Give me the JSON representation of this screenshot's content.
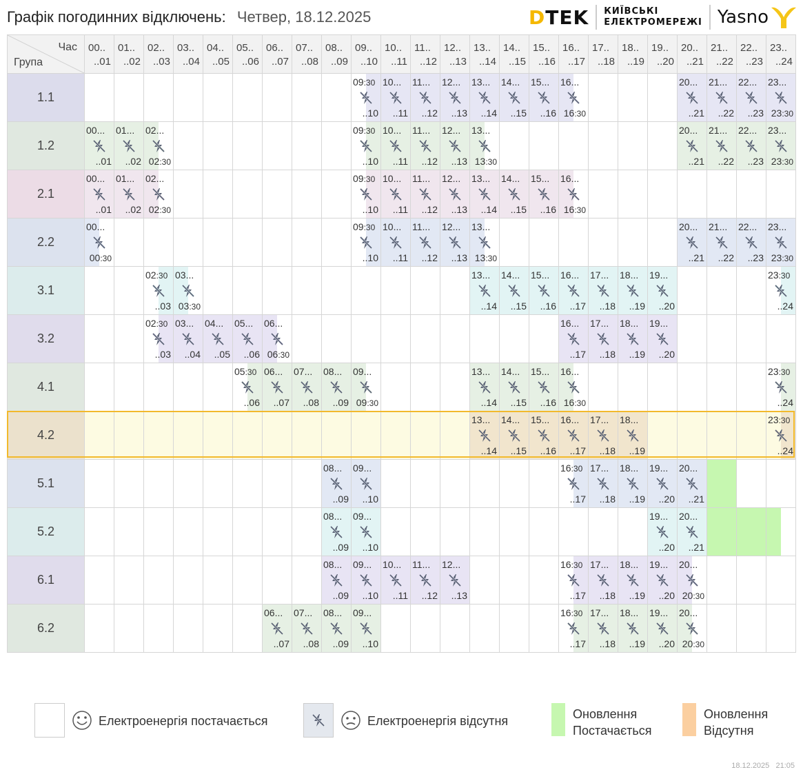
{
  "header": {
    "title": "Графік погодинних відключень:",
    "date": "Четвер, 18.12.2025",
    "brand_dtek": "DTEK",
    "brand_kyiv_line1": "КИЇВСЬКІ",
    "brand_kyiv_line2": "ЕЛЕКТРОМЕРЕЖІ",
    "brand_yasno": "Yasno"
  },
  "table": {
    "corner_hour_label": "Час",
    "corner_group_label": "Група",
    "hours": [
      [
        "00..",
        "..01"
      ],
      [
        "01..",
        "..02"
      ],
      [
        "02..",
        "..03"
      ],
      [
        "03..",
        "..04"
      ],
      [
        "04..",
        "..05"
      ],
      [
        "05..",
        "..06"
      ],
      [
        "06..",
        "..07"
      ],
      [
        "07..",
        "..08"
      ],
      [
        "08..",
        "..09"
      ],
      [
        "09..",
        "..10"
      ],
      [
        "10..",
        "..11"
      ],
      [
        "11..",
        "..12"
      ],
      [
        "12..",
        "..13"
      ],
      [
        "13..",
        "..14"
      ],
      [
        "14..",
        "..15"
      ],
      [
        "15..",
        "..16"
      ],
      [
        "16..",
        "..17"
      ],
      [
        "17..",
        "..18"
      ],
      [
        "18..",
        "..19"
      ],
      [
        "19..",
        "..20"
      ],
      [
        "20..",
        "..21"
      ],
      [
        "21..",
        "..22"
      ],
      [
        "22..",
        "..23"
      ],
      [
        "23..",
        "..24"
      ]
    ],
    "groups": [
      {
        "name": "1.1",
        "label_bg": "#dcdcec",
        "bg": "#e6e6f4",
        "off": {
          "9": "right",
          "10": "full",
          "11": "full",
          "12": "full",
          "13": "full",
          "14": "full",
          "15": "full",
          "16": "left",
          "20": "full",
          "21": "full",
          "22": "full",
          "23": "full"
        },
        "texts": {
          "9": [
            "09:30",
            "..10"
          ],
          "10": [
            "10...",
            "..11"
          ],
          "11": [
            "11...",
            "..12"
          ],
          "12": [
            "12...",
            "..13"
          ],
          "13": [
            "13...",
            "..14"
          ],
          "14": [
            "14...",
            "..15"
          ],
          "15": [
            "15...",
            "..16"
          ],
          "16": [
            "16...",
            "16:30"
          ],
          "20": [
            "20...",
            "..21"
          ],
          "21": [
            "21...",
            "..22"
          ],
          "22": [
            "22...",
            "..23"
          ],
          "23": [
            "23...",
            "23:30"
          ]
        }
      },
      {
        "name": "1.2",
        "label_bg": "#e0e8e0",
        "bg": "#e6f0e4",
        "off": {
          "0": "full",
          "1": "full",
          "2": "left",
          "9": "right",
          "10": "full",
          "11": "full",
          "12": "full",
          "13": "left",
          "20": "full",
          "21": "full",
          "22": "full",
          "23": "full"
        },
        "texts": {
          "0": [
            "00...",
            "..01"
          ],
          "1": [
            "01...",
            "..02"
          ],
          "2": [
            "02...",
            "02:30"
          ],
          "9": [
            "09:30",
            "..10"
          ],
          "10": [
            "10...",
            "..11"
          ],
          "11": [
            "11...",
            "..12"
          ],
          "12": [
            "12...",
            "..13"
          ],
          "13": [
            "13...",
            "13:30"
          ],
          "20": [
            "20...",
            "..21"
          ],
          "21": [
            "21...",
            "..22"
          ],
          "22": [
            "22...",
            "..23"
          ],
          "23": [
            "23...",
            "23:30"
          ]
        },
        "update": {
          "23": "right"
        }
      },
      {
        "name": "2.1",
        "label_bg": "#ecdce6",
        "bg": "#f0e6ee",
        "off": {
          "0": "full",
          "1": "full",
          "2": "left",
          "9": "right",
          "10": "full",
          "11": "full",
          "12": "full",
          "13": "full",
          "14": "full",
          "15": "full",
          "16": "left"
        },
        "texts": {
          "0": [
            "00...",
            "..01"
          ],
          "1": [
            "01...",
            "..02"
          ],
          "2": [
            "02...",
            "02:30"
          ],
          "9": [
            "09:30",
            "..10"
          ],
          "10": [
            "10...",
            "..11"
          ],
          "11": [
            "11...",
            "..12"
          ],
          "12": [
            "12...",
            "..13"
          ],
          "13": [
            "13...",
            "..14"
          ],
          "14": [
            "14...",
            "..15"
          ],
          "15": [
            "15...",
            "..16"
          ],
          "16": [
            "16...",
            "16:30"
          ]
        }
      },
      {
        "name": "2.2",
        "label_bg": "#dce2ee",
        "bg": "#e2e8f4",
        "off": {
          "0": "left",
          "9": "right",
          "10": "full",
          "11": "full",
          "12": "full",
          "13": "left",
          "20": "full",
          "21": "full",
          "22": "full",
          "23": "full"
        },
        "texts": {
          "0": [
            "00...",
            "00:30"
          ],
          "9": [
            "09:30",
            "..10"
          ],
          "10": [
            "10...",
            "..11"
          ],
          "11": [
            "11...",
            "..12"
          ],
          "12": [
            "12...",
            "..13"
          ],
          "13": [
            "13...",
            "13:30"
          ],
          "20": [
            "20...",
            "..21"
          ],
          "21": [
            "21...",
            "..22"
          ],
          "22": [
            "22...",
            "..23"
          ],
          "23": [
            "23...",
            "23:30"
          ]
        }
      },
      {
        "name": "3.1",
        "label_bg": "#dcecec",
        "bg": "#e2f4f4",
        "off": {
          "2": "right",
          "3": "left",
          "13": "full",
          "14": "full",
          "15": "full",
          "16": "full",
          "17": "full",
          "18": "full",
          "19": "full",
          "23": "right"
        },
        "texts": {
          "2": [
            "02:30",
            "..03"
          ],
          "3": [
            "03...",
            "03:30"
          ],
          "13": [
            "13...",
            "..14"
          ],
          "14": [
            "14...",
            "..15"
          ],
          "15": [
            "15...",
            "..16"
          ],
          "16": [
            "16...",
            "..17"
          ],
          "17": [
            "17...",
            "..18"
          ],
          "18": [
            "18...",
            "..19"
          ],
          "19": [
            "19...",
            "..20"
          ],
          "23": [
            "23:30",
            "..24"
          ]
        }
      },
      {
        "name": "3.2",
        "label_bg": "#e0dcec",
        "bg": "#e8e4f4",
        "off": {
          "2": "right",
          "3": "full",
          "4": "full",
          "5": "full",
          "6": "left",
          "16": "full",
          "17": "full",
          "18": "full",
          "19": "full"
        },
        "texts": {
          "2": [
            "02:30",
            "..03"
          ],
          "3": [
            "03...",
            "..04"
          ],
          "4": [
            "04...",
            "..05"
          ],
          "5": [
            "05...",
            "..06"
          ],
          "6": [
            "06...",
            "06:30"
          ],
          "16": [
            "16...",
            "..17"
          ],
          "17": [
            "17...",
            "..18"
          ],
          "18": [
            "18...",
            "..19"
          ],
          "19": [
            "19...",
            "..20"
          ]
        }
      },
      {
        "name": "4.1",
        "label_bg": "#e0e8e0",
        "bg": "#e6f0e4",
        "off": {
          "5": "right",
          "6": "full",
          "7": "full",
          "8": "full",
          "9": "left",
          "13": "full",
          "14": "full",
          "15": "full",
          "16": "left",
          "23": "right"
        },
        "texts": {
          "5": [
            "05:30",
            "..06"
          ],
          "6": [
            "06...",
            "..07"
          ],
          "7": [
            "07...",
            "..08"
          ],
          "8": [
            "08...",
            "..09"
          ],
          "9": [
            "09...",
            "09:30"
          ],
          "13": [
            "13...",
            "..14"
          ],
          "14": [
            "14...",
            "..15"
          ],
          "15": [
            "15...",
            "..16"
          ],
          "16": [
            "16...",
            "16:30"
          ],
          "23": [
            "23:30",
            "..24"
          ]
        }
      },
      {
        "name": "4.2",
        "label_bg": "#ebe1cc",
        "bg": "#f1e5cd",
        "row_bg": "#fdfbe2",
        "off": {
          "13": "full",
          "14": "full",
          "15": "full",
          "16": "full",
          "17": "full",
          "18": "full",
          "23": "right"
        },
        "texts": {
          "13": [
            "13...",
            "..14"
          ],
          "14": [
            "14...",
            "..15"
          ],
          "15": [
            "15...",
            "..16"
          ],
          "16": [
            "16...",
            "..17"
          ],
          "17": [
            "17...",
            "..18"
          ],
          "18": [
            "18...",
            "..19"
          ],
          "23": [
            "23:30",
            "..24"
          ]
        }
      },
      {
        "name": "5.1",
        "label_bg": "#dce2ee",
        "bg": "#e2e8f4",
        "off": {
          "8": "full",
          "9": "full",
          "16": "right",
          "17": "full",
          "18": "full",
          "19": "full",
          "20": "full"
        },
        "texts": {
          "8": [
            "08...",
            "..09"
          ],
          "9": [
            "09...",
            "..10"
          ],
          "16": [
            "16:30",
            "..17"
          ],
          "17": [
            "17...",
            "..18"
          ],
          "18": [
            "18...",
            "..19"
          ],
          "19": [
            "19...",
            "..20"
          ],
          "20": [
            "20...",
            "..21"
          ]
        },
        "update": {
          "21": "full"
        }
      },
      {
        "name": "5.2",
        "label_bg": "#dcecec",
        "bg": "#e2f4f4",
        "off": {
          "8": "full",
          "9": "full",
          "19": "full",
          "20": "full"
        },
        "texts": {
          "8": [
            "08...",
            "..09"
          ],
          "9": [
            "09...",
            "..10"
          ],
          "19": [
            "19...",
            "..20"
          ],
          "20": [
            "20...",
            "..21"
          ]
        },
        "update": {
          "21": "full",
          "22": "full",
          "23": "left"
        }
      },
      {
        "name": "6.1",
        "label_bg": "#e0dcec",
        "bg": "#e8e4f4",
        "off": {
          "8": "full",
          "9": "full",
          "10": "full",
          "11": "full",
          "12": "full",
          "16": "right",
          "17": "full",
          "18": "full",
          "19": "full",
          "20": "left"
        },
        "texts": {
          "8": [
            "08...",
            "..09"
          ],
          "9": [
            "09...",
            "..10"
          ],
          "10": [
            "10...",
            "..11"
          ],
          "11": [
            "11...",
            "..12"
          ],
          "12": [
            "12...",
            "..13"
          ],
          "16": [
            "16:30",
            "..17"
          ],
          "17": [
            "17...",
            "..18"
          ],
          "18": [
            "18...",
            "..19"
          ],
          "19": [
            "19...",
            "..20"
          ],
          "20": [
            "20...",
            "20:30"
          ]
        }
      },
      {
        "name": "6.2",
        "label_bg": "#e0e8e0",
        "bg": "#e6f0e4",
        "off": {
          "6": "full",
          "7": "full",
          "8": "full",
          "9": "full",
          "16": "right",
          "17": "full",
          "18": "full",
          "19": "full",
          "20": "left"
        },
        "texts": {
          "6": [
            "06...",
            "..07"
          ],
          "7": [
            "07...",
            "..08"
          ],
          "8": [
            "08...",
            "..09"
          ],
          "9": [
            "09...",
            "..10"
          ],
          "16": [
            "16:30",
            "..17"
          ],
          "17": [
            "17...",
            "..18"
          ],
          "18": [
            "18...",
            "..19"
          ],
          "19": [
            "19...",
            "..20"
          ],
          "20": [
            "20...",
            "20:30"
          ]
        }
      }
    ],
    "highlighted_group": "4.2"
  },
  "legend": {
    "power_on": "Електроенергія постачається",
    "power_off": "Електроенергія відсутня",
    "update_on_line1": "Оновлення",
    "update_on_line2": "Постачається",
    "update_off_line1": "Оновлення",
    "update_off_line2": "Відсутня"
  },
  "colors": {
    "update_on": "#c6f7b0",
    "update_off": "#fbcfa0",
    "highlight_border": "#f2b92c",
    "icon": "#5a6275",
    "dtek_accent": "#f5b800",
    "yasno_accent": "#f5c518"
  },
  "icons": [
    "power-off-icon",
    "smiling-face-icon",
    "unhappy-face-icon",
    "yasno-y-icon"
  ],
  "footer": {
    "date": "18.12.2025",
    "time": "21:05"
  }
}
